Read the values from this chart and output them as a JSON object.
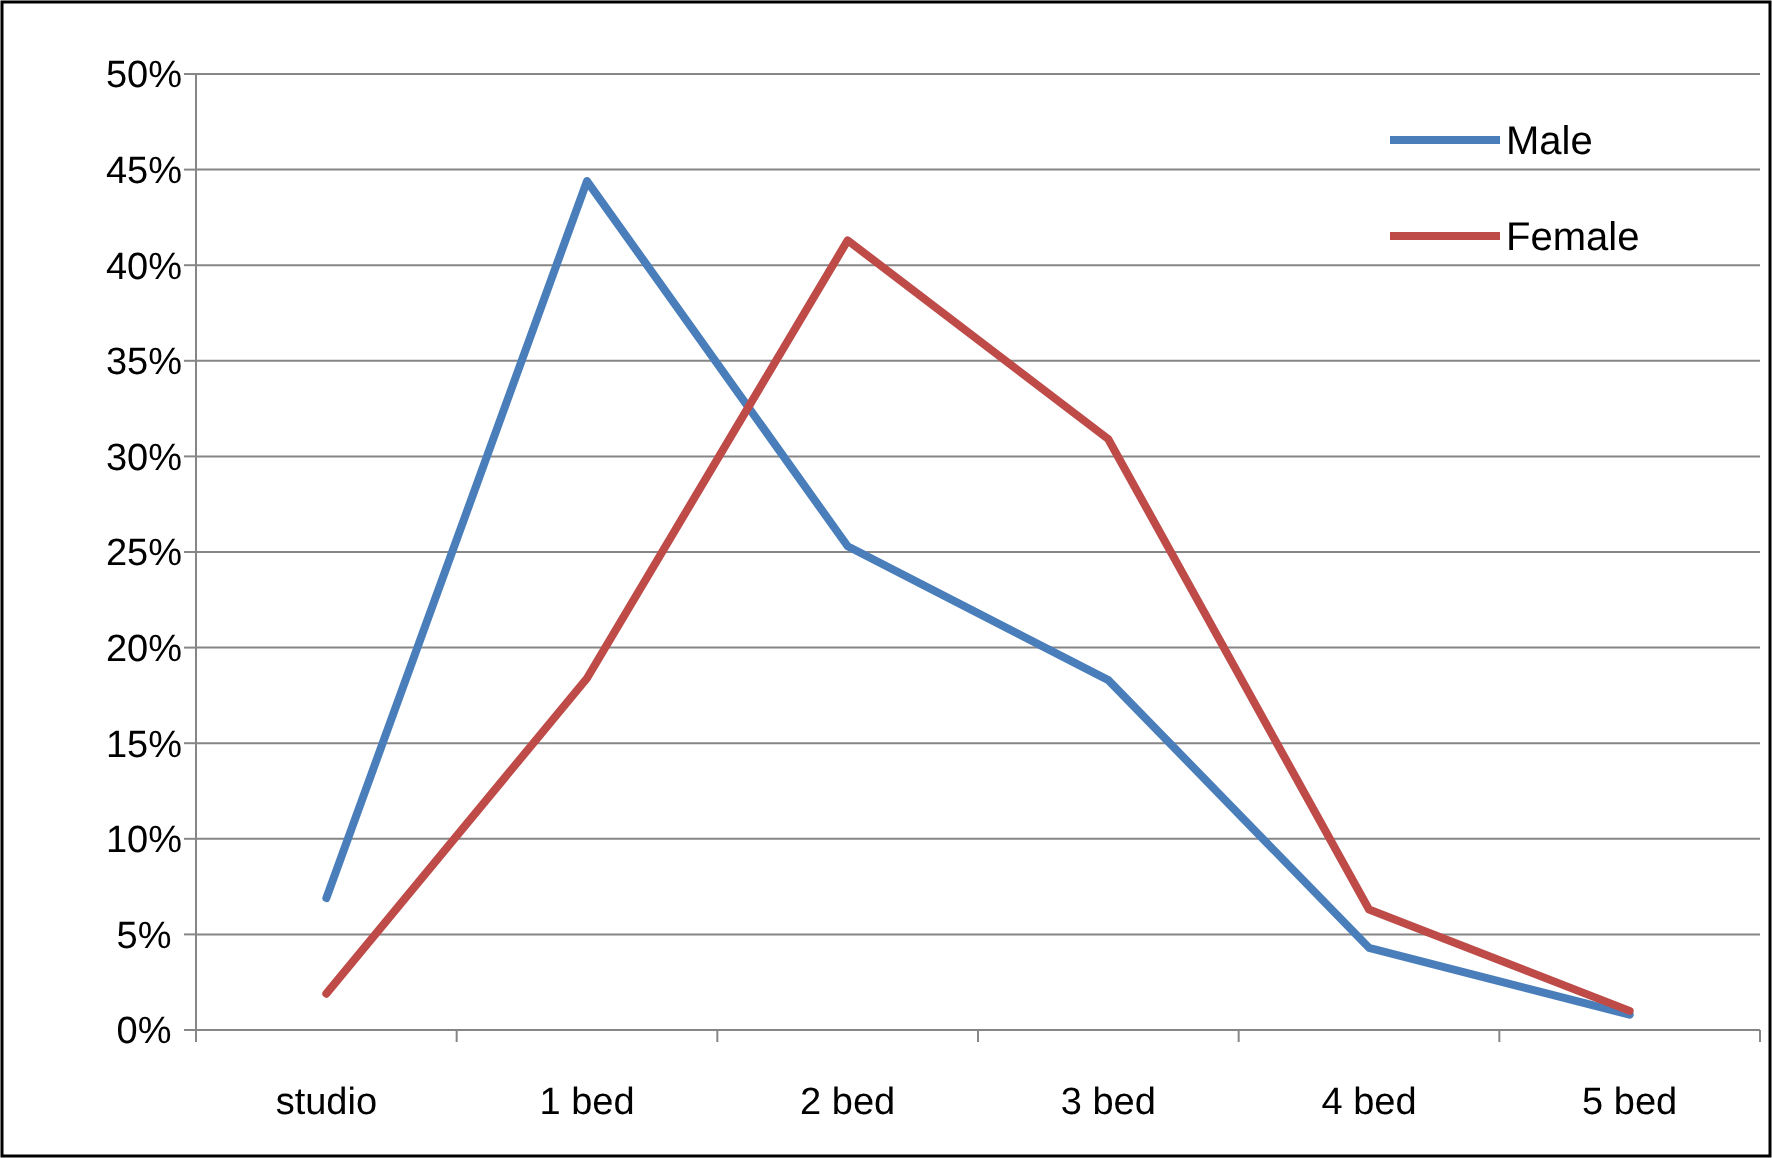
{
  "chart_data": {
    "type": "line",
    "categories": [
      "studio",
      "1 bed",
      "2 bed",
      "3 bed",
      "4 bed",
      "5 bed"
    ],
    "series": [
      {
        "name": "Male",
        "color": "#4a7ebb",
        "values": [
          6.9,
          44.4,
          25.3,
          18.3,
          4.3,
          0.8
        ]
      },
      {
        "name": "Female",
        "color": "#be4b48",
        "values": [
          1.9,
          18.4,
          41.3,
          30.9,
          6.3,
          1.0
        ]
      }
    ],
    "ylim": [
      0,
      50
    ],
    "yticks": [
      {
        "value": 0,
        "label": "0%"
      },
      {
        "value": 5,
        "label": "5%"
      },
      {
        "value": 10,
        "label": "10%"
      },
      {
        "value": 15,
        "label": "15%"
      },
      {
        "value": 20,
        "label": "20%"
      },
      {
        "value": 25,
        "label": "25%"
      },
      {
        "value": 30,
        "label": "30%"
      },
      {
        "value": 35,
        "label": "35%"
      },
      {
        "value": 40,
        "label": "40%"
      },
      {
        "value": 45,
        "label": "45%"
      },
      {
        "value": 50,
        "label": "50%"
      }
    ],
    "grid": "y",
    "legend": "top right",
    "marker": "none",
    "line_style": "solid"
  }
}
